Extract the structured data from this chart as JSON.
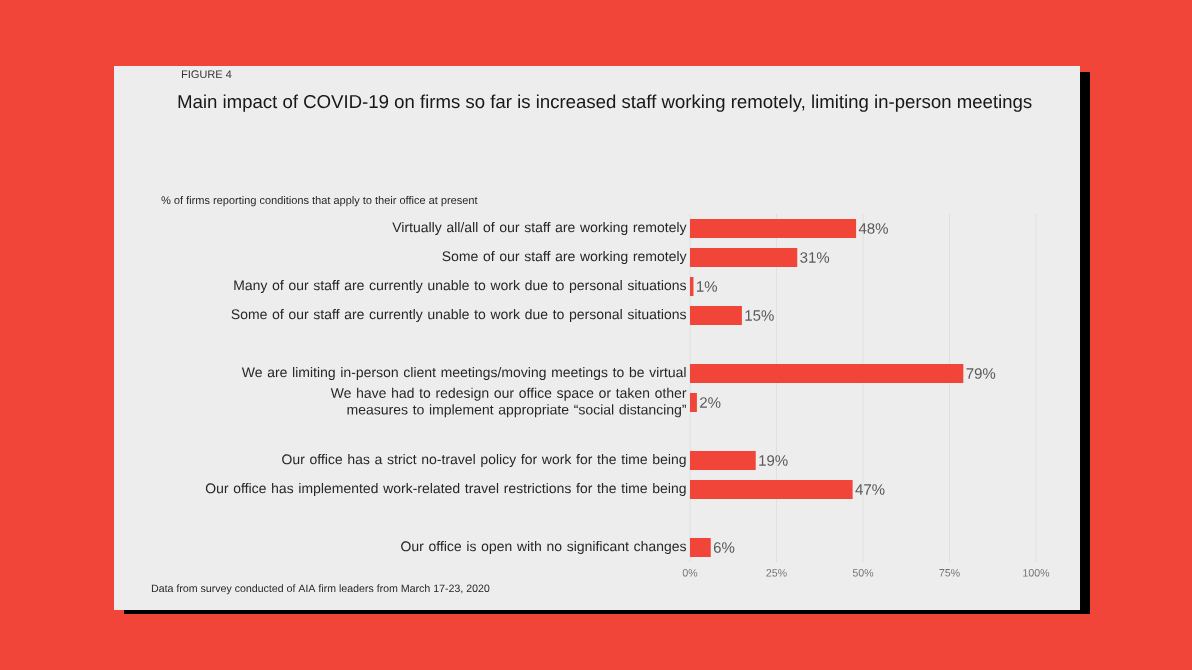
{
  "chart_data": {
    "type": "bar",
    "orientation": "horizontal",
    "title": "Main impact of COVID-19 on firms so far is increased staff working remotely, limiting in-person meetings",
    "subtitle": "% of firms reporting conditions that apply to their office at present",
    "annotations": [
      "FIGURE 4",
      "Data from survey conducted of AIA firm leaders from March 17-23, 2020"
    ],
    "categories": [
      "Virtually all/all of our staff are working remotely",
      "Some of our staff are working remotely",
      "Many of our staff are currently unable to work due to personal situations",
      "Some of our staff are currently unable to work due to personal situations",
      null,
      "We are limiting in-person client meetings/moving meetings to be virtual",
      "We have had to redesign our office space or taken other measures to implement appropriate “social distancing”",
      null,
      "Our office has a strict no-travel policy for work for the time being",
      "Our office has implemented work-related travel restrictions for the time being",
      null,
      "Our office is open with no significant changes"
    ],
    "values": [
      48,
      31,
      1,
      15,
      null,
      79,
      2,
      null,
      19,
      47,
      null,
      6
    ],
    "value_labels": [
      "48%",
      "31%",
      "1%",
      "15%",
      null,
      "79%",
      "2%",
      null,
      "19%",
      "47%",
      null,
      "6%"
    ],
    "color": "#f2453a",
    "xlim": [
      0,
      100
    ],
    "xticks": [
      {
        "value": 0,
        "label": "0%"
      },
      {
        "value": 25,
        "label": "25%"
      },
      {
        "value": 50,
        "label": "50%"
      },
      {
        "value": 75,
        "label": "75%"
      },
      {
        "value": 100,
        "label": "100%"
      }
    ],
    "grid": "x"
  }
}
